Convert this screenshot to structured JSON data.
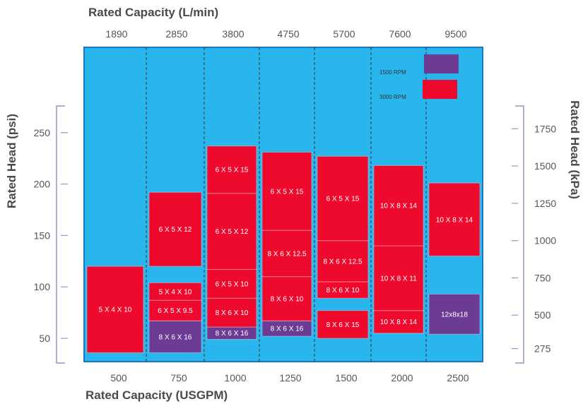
{
  "chart_data": {
    "type": "bar",
    "title_top": "Rated Capacity (L/min)",
    "xlabel": "Rated Capacity (USGPM)",
    "ylabel_left": "Rated Head (psi)",
    "ylabel_right": "Rated Head (kPa)",
    "categories": [
      "500",
      "750",
      "1000",
      "1250",
      "1500",
      "2000",
      "2500"
    ],
    "top_ticks": [
      "1890",
      "2850",
      "3800",
      "4750",
      "5700",
      "7600",
      "9500"
    ],
    "left_ticks": [
      50,
      100,
      150,
      200,
      250
    ],
    "right_ticks": [
      "275",
      "500",
      "750",
      "1000",
      "1250",
      "1500",
      "1750"
    ],
    "right_tick_psi": [
      40,
      72.5,
      108.8,
      145,
      181.3,
      217.6,
      253.8
    ],
    "ylim": [
      0,
      275
    ],
    "colors": {
      "background": "#29b6ec",
      "rpm_1500": "#6c3b93",
      "rpm_3000": "#ee0a2c",
      "divider": "#2a4a66",
      "axis_bracket": "#9a93c4"
    },
    "legend": [
      {
        "label": "1500 RPM",
        "color": "#6c3b93"
      },
      {
        "label": "3000 RPM",
        "color": "#ee0a2c"
      }
    ],
    "segments": [
      {
        "col": 0,
        "low": 36,
        "high": 120,
        "label": "5 X 4 X 10",
        "rpm": "3000"
      },
      {
        "col": 1,
        "low": 36,
        "high": 67,
        "label": "8 X 6 X 16",
        "rpm": "1500"
      },
      {
        "col": 1,
        "low": 67,
        "high": 87,
        "label": "6 X 5 X 9.5",
        "rpm": "3000"
      },
      {
        "col": 1,
        "low": 87,
        "high": 104,
        "label": "5 X 4 X 10",
        "rpm": "3000"
      },
      {
        "col": 1,
        "low": 120,
        "high": 192,
        "label": "6 X 5 X 12",
        "rpm": "3000"
      },
      {
        "col": 2,
        "low": 49,
        "high": 61,
        "label": "8 X 6 X 16",
        "rpm": "1500"
      },
      {
        "col": 2,
        "low": 61,
        "high": 89,
        "label": "8 X 6 X 10",
        "rpm": "3000"
      },
      {
        "col": 2,
        "low": 89,
        "high": 117,
        "label": "6 X 5 X 10",
        "rpm": "3000"
      },
      {
        "col": 2,
        "low": 117,
        "high": 191,
        "label": "6 X 5 X 12",
        "rpm": "3000"
      },
      {
        "col": 2,
        "low": 191,
        "high": 237,
        "label": "6 X 5 X 15",
        "rpm": "3000"
      },
      {
        "col": 3,
        "low": 52,
        "high": 67,
        "label": "8 X 6 X 16",
        "rpm": "1500"
      },
      {
        "col": 3,
        "low": 67,
        "high": 110,
        "label": "8 X 6 X 10",
        "rpm": "3000"
      },
      {
        "col": 3,
        "low": 110,
        "high": 155,
        "label": "8 X 6 X 12.5",
        "rpm": "3000"
      },
      {
        "col": 3,
        "low": 155,
        "high": 231,
        "label": "6 X 5 X 15",
        "rpm": "3000"
      },
      {
        "col": 4,
        "low": 50,
        "high": 77,
        "label": "8 X 6 X 15",
        "rpm": "3000"
      },
      {
        "col": 4,
        "low": 89,
        "high": 105,
        "label": "8 X 6 X 10",
        "rpm": "3000"
      },
      {
        "col": 4,
        "low": 105,
        "high": 145,
        "label": "8 X 6 X 12.5",
        "rpm": "3000"
      },
      {
        "col": 4,
        "low": 145,
        "high": 227,
        "label": "6 X 5 X 15",
        "rpm": "3000"
      },
      {
        "col": 5,
        "low": 55,
        "high": 77,
        "label": "10 X 8 X 14",
        "rpm": "3000"
      },
      {
        "col": 5,
        "low": 77,
        "high": 140,
        "label": "10 X 8 X 11",
        "rpm": "3000"
      },
      {
        "col": 5,
        "low": 140,
        "high": 218,
        "label": "10 X 8 X 14",
        "rpm": "3000"
      },
      {
        "col": 6,
        "low": 54,
        "high": 93,
        "label": "12x8x18",
        "rpm": "1500"
      },
      {
        "col": 6,
        "low": 130,
        "high": 201,
        "label": "10 X 8 X 14",
        "rpm": "3000"
      }
    ]
  }
}
